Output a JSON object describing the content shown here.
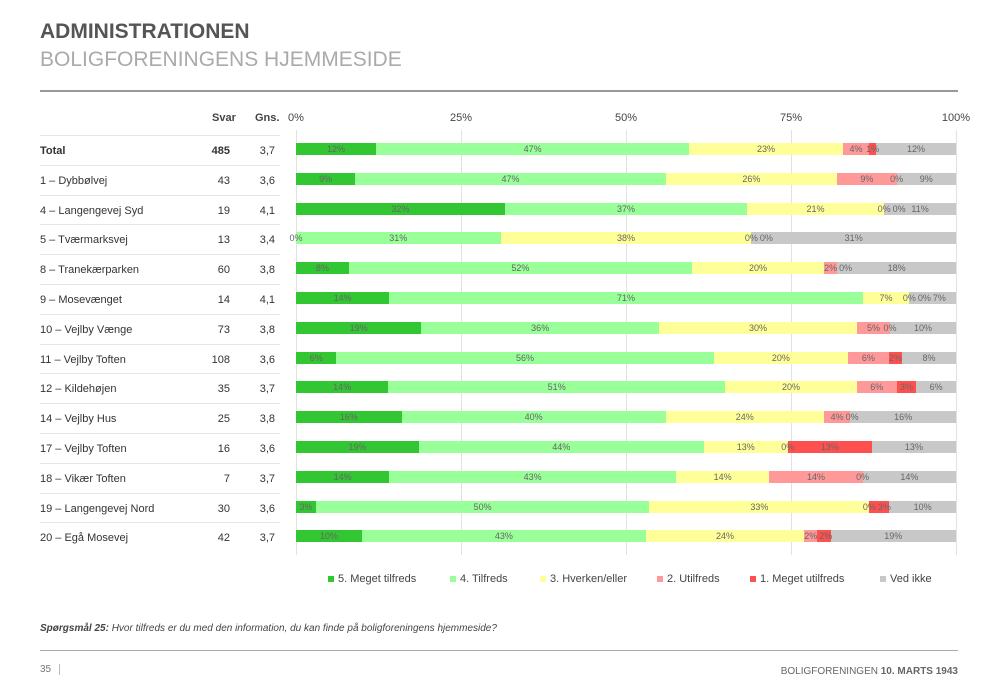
{
  "header": {
    "title": "ADMINISTRATIONEN",
    "subtitle": "BOLIGFORENINGENS HJEMMESIDE"
  },
  "table": {
    "col_svar": "Svar",
    "col_gns": "Gns."
  },
  "chart_data": {
    "type": "bar",
    "stacked": true,
    "orientation": "horizontal",
    "xlim": [
      0,
      100
    ],
    "x_ticks": [
      "0%",
      "25%",
      "50%",
      "75%",
      "100%"
    ],
    "grid": true,
    "legend": "bottom",
    "categories": [
      "Total",
      "1 – Dybbølvej",
      "4 – Langengevej Syd",
      "5 – Tværmarksvej",
      "8 – Tranekærparken",
      "9 – Mosevænget",
      "10 – Vejlby Vænge",
      "11 – Vejlby Toften",
      "12 – Kildehøjen",
      "14 – Vejlby Hus",
      "17 – Vejlby Toften",
      "18 – Vikær Toften",
      "19 – Langengevej Nord",
      "20 – Egå Mosevej"
    ],
    "svar": [
      "485",
      "43",
      "19",
      "13",
      "60",
      "14",
      "73",
      "108",
      "35",
      "25",
      "16",
      "7",
      "30",
      "42"
    ],
    "gns": [
      "3,7",
      "3,6",
      "4,1",
      "3,4",
      "3,8",
      "4,1",
      "3,8",
      "3,6",
      "3,7",
      "3,8",
      "3,6",
      "3,7",
      "3,6",
      "3,7"
    ],
    "series": [
      {
        "name": "5. Meget tilfreds",
        "color": "#33c633",
        "values": [
          12,
          9,
          32,
          0,
          8,
          14,
          19,
          6,
          14,
          16,
          19,
          14,
          3,
          10
        ]
      },
      {
        "name": "4. Tilfreds",
        "color": "#99ff99",
        "values": [
          47,
          47,
          37,
          31,
          52,
          71,
          36,
          56,
          51,
          40,
          44,
          43,
          50,
          43
        ]
      },
      {
        "name": "3. Hverken/eller",
        "color": "#ffff99",
        "values": [
          23,
          26,
          21,
          38,
          20,
          7,
          30,
          20,
          20,
          24,
          13,
          14,
          33,
          24
        ]
      },
      {
        "name": "2. Utilfreds",
        "color": "#ff9999",
        "values": [
          4,
          9,
          0,
          0,
          2,
          0,
          5,
          6,
          6,
          4,
          0,
          14,
          0,
          2
        ]
      },
      {
        "name": "1. Meget utilfreds",
        "color": "#ff5050",
        "values": [
          1,
          0,
          0,
          0,
          0,
          0,
          0,
          2,
          3,
          0,
          13,
          0,
          3,
          2
        ]
      },
      {
        "name": "Ved ikke",
        "color": "#c8c8c8",
        "values": [
          12,
          9,
          11,
          31,
          18,
          7,
          10,
          8,
          6,
          16,
          13,
          14,
          10,
          19
        ]
      }
    ]
  },
  "question": {
    "label": "Spørgsmål 25:",
    "text": " Hvor tilfreds er du med den information, du kan finde på boligforeningens hjemmeside?"
  },
  "footer": {
    "page": "35",
    "org": "BOLIGFORENINGEN ",
    "date": "10. MARTS 1943"
  }
}
